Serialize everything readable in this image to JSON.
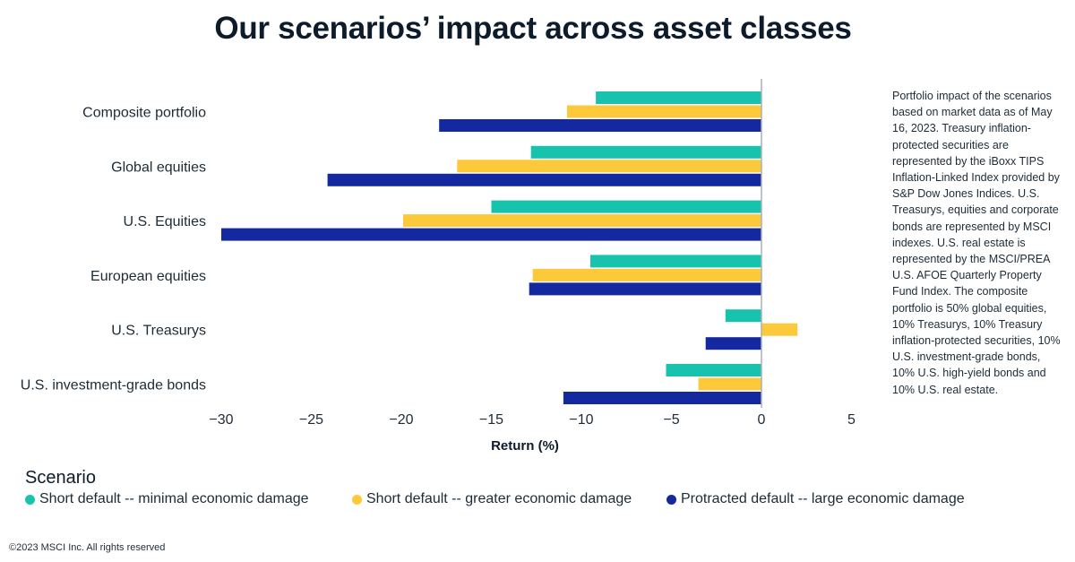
{
  "title": "Our scenarios’ impact across asset classes",
  "note": "Portfolio impact of the scenarios based on market data as of May 16, 2023. Treasury inflation-protected securities are represented by the iBoxx TIPS Inflation-Linked Index provided by S&P Dow Jones Indices. U.S. Treasurys, equities and corporate bonds are represented by MSCI indexes. U.S. real estate is represented by the MSCI/PREA U.S. AFOE Quarterly Property Fund Index. The composite portfolio is 50% global equities, 10% Treasurys, 10% Treasury inflation-protected securities, 10% U.S. investment-grade bonds, 10% U.S. high-yield bonds and 10% U.S. real estate.",
  "legend_title": "Scenario",
  "footer": "©2023 MSCI Inc. All rights reserved",
  "chart_data": {
    "type": "bar",
    "orientation": "horizontal",
    "title": "Our scenarios’ impact across asset classes",
    "xlabel": "Return (%)",
    "ylabel": "",
    "xlim": [
      -30,
      5
    ],
    "xticks": [
      -30,
      -25,
      -20,
      -15,
      -10,
      -5,
      0,
      5
    ],
    "xtick_labels": [
      "−30",
      "−25",
      "−20",
      "−15",
      "−10",
      "−5",
      "0",
      "5"
    ],
    "categories": [
      "Composite portfolio",
      "Global equities",
      "U.S. Equities",
      "European equities",
      "U.S. Treasurys",
      "U.S. investment-grade bonds"
    ],
    "series": [
      {
        "name": "Short default -- minimal economic damage",
        "color": "#18c3ad",
        "values": [
          -9.2,
          -12.8,
          -15.0,
          -9.5,
          -2.0,
          -5.3
        ]
      },
      {
        "name": "Short default -- greater economic damage",
        "color": "#fcc93a",
        "values": [
          -10.8,
          -16.9,
          -19.9,
          -12.7,
          2.0,
          -3.5
        ]
      },
      {
        "name": "Protracted default -- large economic damage",
        "color": "#1428a0",
        "values": [
          -17.9,
          -24.1,
          -30.0,
          -12.9,
          -3.1,
          -11.0
        ]
      }
    ],
    "grid": false,
    "legend_position": "bottom-left"
  }
}
